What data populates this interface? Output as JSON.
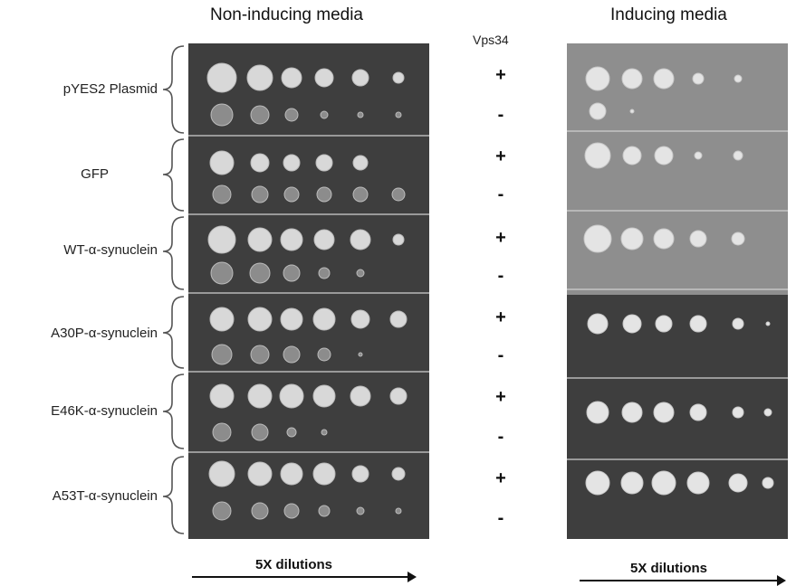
{
  "headers": {
    "left": "Non-inducing media",
    "right": "Inducing media",
    "gene": "Vps34"
  },
  "strains": [
    {
      "label": "pYES2 Plasmid",
      "plus": "+",
      "minus": "-"
    },
    {
      "label": "GFP",
      "plus": "+",
      "minus": "-"
    },
    {
      "label": "WT-α-synuclein",
      "plus": "+",
      "minus": "-"
    },
    {
      "label": "A30P-α-synuclein",
      "plus": "+",
      "minus": "-"
    },
    {
      "label": "E46K-α-synuclein",
      "plus": "+",
      "minus": "-"
    },
    {
      "label": "A53T-α-synuclein",
      "plus": "+",
      "minus": "-"
    }
  ],
  "footer": {
    "left": "5X dilutions",
    "right": "5X dilutions"
  },
  "colors": {
    "plate_dark": "#3a3a3a",
    "plate_light": "#8d8d8d",
    "colony": "#e6e6e6"
  }
}
